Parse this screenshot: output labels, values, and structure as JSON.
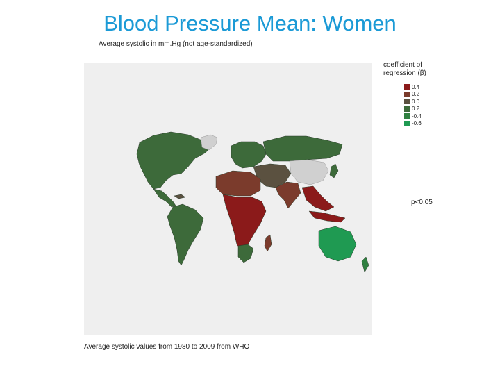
{
  "title": "Blood Pressure Mean: Women",
  "subtitle": "Average systolic in mm.Hg (not age-standardized)",
  "legend": {
    "title": "coefficient of regression (β)",
    "items": [
      {
        "label": "0.4",
        "color": "#8b1a1a"
      },
      {
        "label": "0.2",
        "color": "#7b3b2c"
      },
      {
        "label": "0.0",
        "color": "#5b5140"
      },
      {
        "label": "0.2",
        "color": "#3d6a3a"
      },
      {
        "label": "-0.4",
        "color": "#2f8040"
      },
      {
        "label": "-0.6",
        "color": "#1f9a52"
      }
    ]
  },
  "significance": "p<0.05",
  "source_note": "Average systolic values from 1980 to 2009 from WHO",
  "colors": {
    "title": "#1b9ad6",
    "map_background": "#efefef",
    "no_data": "#d0d0d0"
  }
}
